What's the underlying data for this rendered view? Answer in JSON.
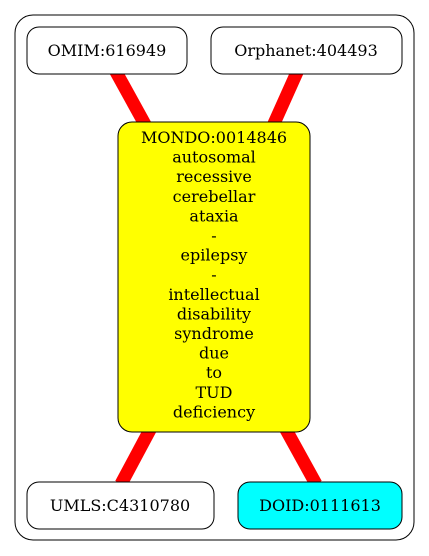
{
  "nodes": {
    "omim": {
      "label": "OMIM:616949",
      "fill": "#ffffff"
    },
    "orphanet": {
      "label": "Orphanet:404493",
      "fill": "#ffffff"
    },
    "mondo": {
      "lines": [
        "MONDO:0014846",
        "autosomal",
        "recessive",
        "cerebellar",
        "ataxia",
        "-",
        "epilepsy",
        "-",
        "intellectual",
        "disability",
        "syndrome",
        "due",
        "to",
        "TUD",
        "deficiency"
      ],
      "fill": "#ffff00"
    },
    "umls": {
      "label": "UMLS:C4310780",
      "fill": "#ffffff"
    },
    "doid": {
      "label": "DOID:0111613",
      "fill": "#00ffff"
    }
  },
  "edges": [
    {
      "from": "omim",
      "to": "mondo"
    },
    {
      "from": "orphanet",
      "to": "mondo"
    },
    {
      "from": "mondo",
      "to": "umls"
    },
    {
      "from": "mondo",
      "to": "doid"
    }
  ],
  "colors": {
    "edge": "#ff0000",
    "border": "#000000",
    "background": "#ffffff"
  }
}
